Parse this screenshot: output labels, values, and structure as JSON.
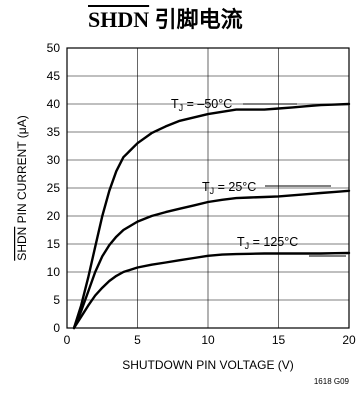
{
  "title_bar": "SHDN",
  "title_rest": " 引脚电流",
  "figure_id": "1618 G09",
  "chart_data": {
    "type": "line",
    "title": "SHDN 引脚电流",
    "xlabel": "SHUTDOWN PIN VOLTAGE (V)",
    "ylabel_bar": "SHDN",
    "ylabel_rest": " PIN CURRENT (μA)",
    "xlim": [
      0,
      20
    ],
    "ylim": [
      0,
      50
    ],
    "xticks": [
      0,
      5,
      10,
      15,
      20
    ],
    "yticks": [
      0,
      5,
      10,
      15,
      20,
      25,
      30,
      35,
      40,
      45,
      50
    ],
    "grid": true,
    "series": [
      {
        "name": "T_J = –50°C",
        "label_main": "T",
        "label_sub": "J",
        "label_tail": " = –50°C",
        "x": [
          0.5,
          1,
          1.5,
          2,
          2.5,
          3,
          3.5,
          4,
          5,
          6,
          7,
          8,
          9,
          10,
          11,
          12,
          13,
          14,
          15,
          16,
          17,
          18,
          19,
          20
        ],
        "y": [
          0,
          4,
          9,
          14.5,
          20,
          24.5,
          28,
          30.5,
          33,
          34.8,
          36,
          37,
          37.6,
          38.2,
          38.6,
          39,
          39,
          39,
          39.2,
          39.4,
          39.6,
          39.8,
          39.9,
          40
        ]
      },
      {
        "name": "T_J = 25°C",
        "label_main": "T",
        "label_sub": "J",
        "label_tail": " = 25°C",
        "x": [
          0.5,
          1,
          1.5,
          2,
          2.5,
          3,
          3.5,
          4,
          5,
          6,
          7,
          8,
          9,
          10,
          11,
          12,
          13,
          14,
          15,
          16,
          17,
          18,
          19,
          20
        ],
        "y": [
          0,
          3,
          6.5,
          10,
          12.8,
          14.8,
          16.3,
          17.5,
          19,
          20,
          20.7,
          21.3,
          21.9,
          22.5,
          22.9,
          23.2,
          23.3,
          23.4,
          23.5,
          23.7,
          23.9,
          24.1,
          24.3,
          24.5
        ]
      },
      {
        "name": "T_J = 125°C",
        "label_main": "T",
        "label_sub": "J",
        "label_tail": " = 125°C",
        "x": [
          0.5,
          1,
          1.5,
          2,
          2.5,
          3,
          3.5,
          4,
          5,
          6,
          7,
          8,
          9,
          10,
          11,
          12,
          13,
          14,
          15,
          16,
          17,
          18,
          19,
          20
        ],
        "y": [
          0,
          2,
          4,
          5.8,
          7.2,
          8.4,
          9.3,
          10,
          10.8,
          11.3,
          11.7,
          12.1,
          12.5,
          12.9,
          13.1,
          13.2,
          13.25,
          13.3,
          13.3,
          13.3,
          13.3,
          13.3,
          13.35,
          13.4
        ]
      }
    ]
  }
}
